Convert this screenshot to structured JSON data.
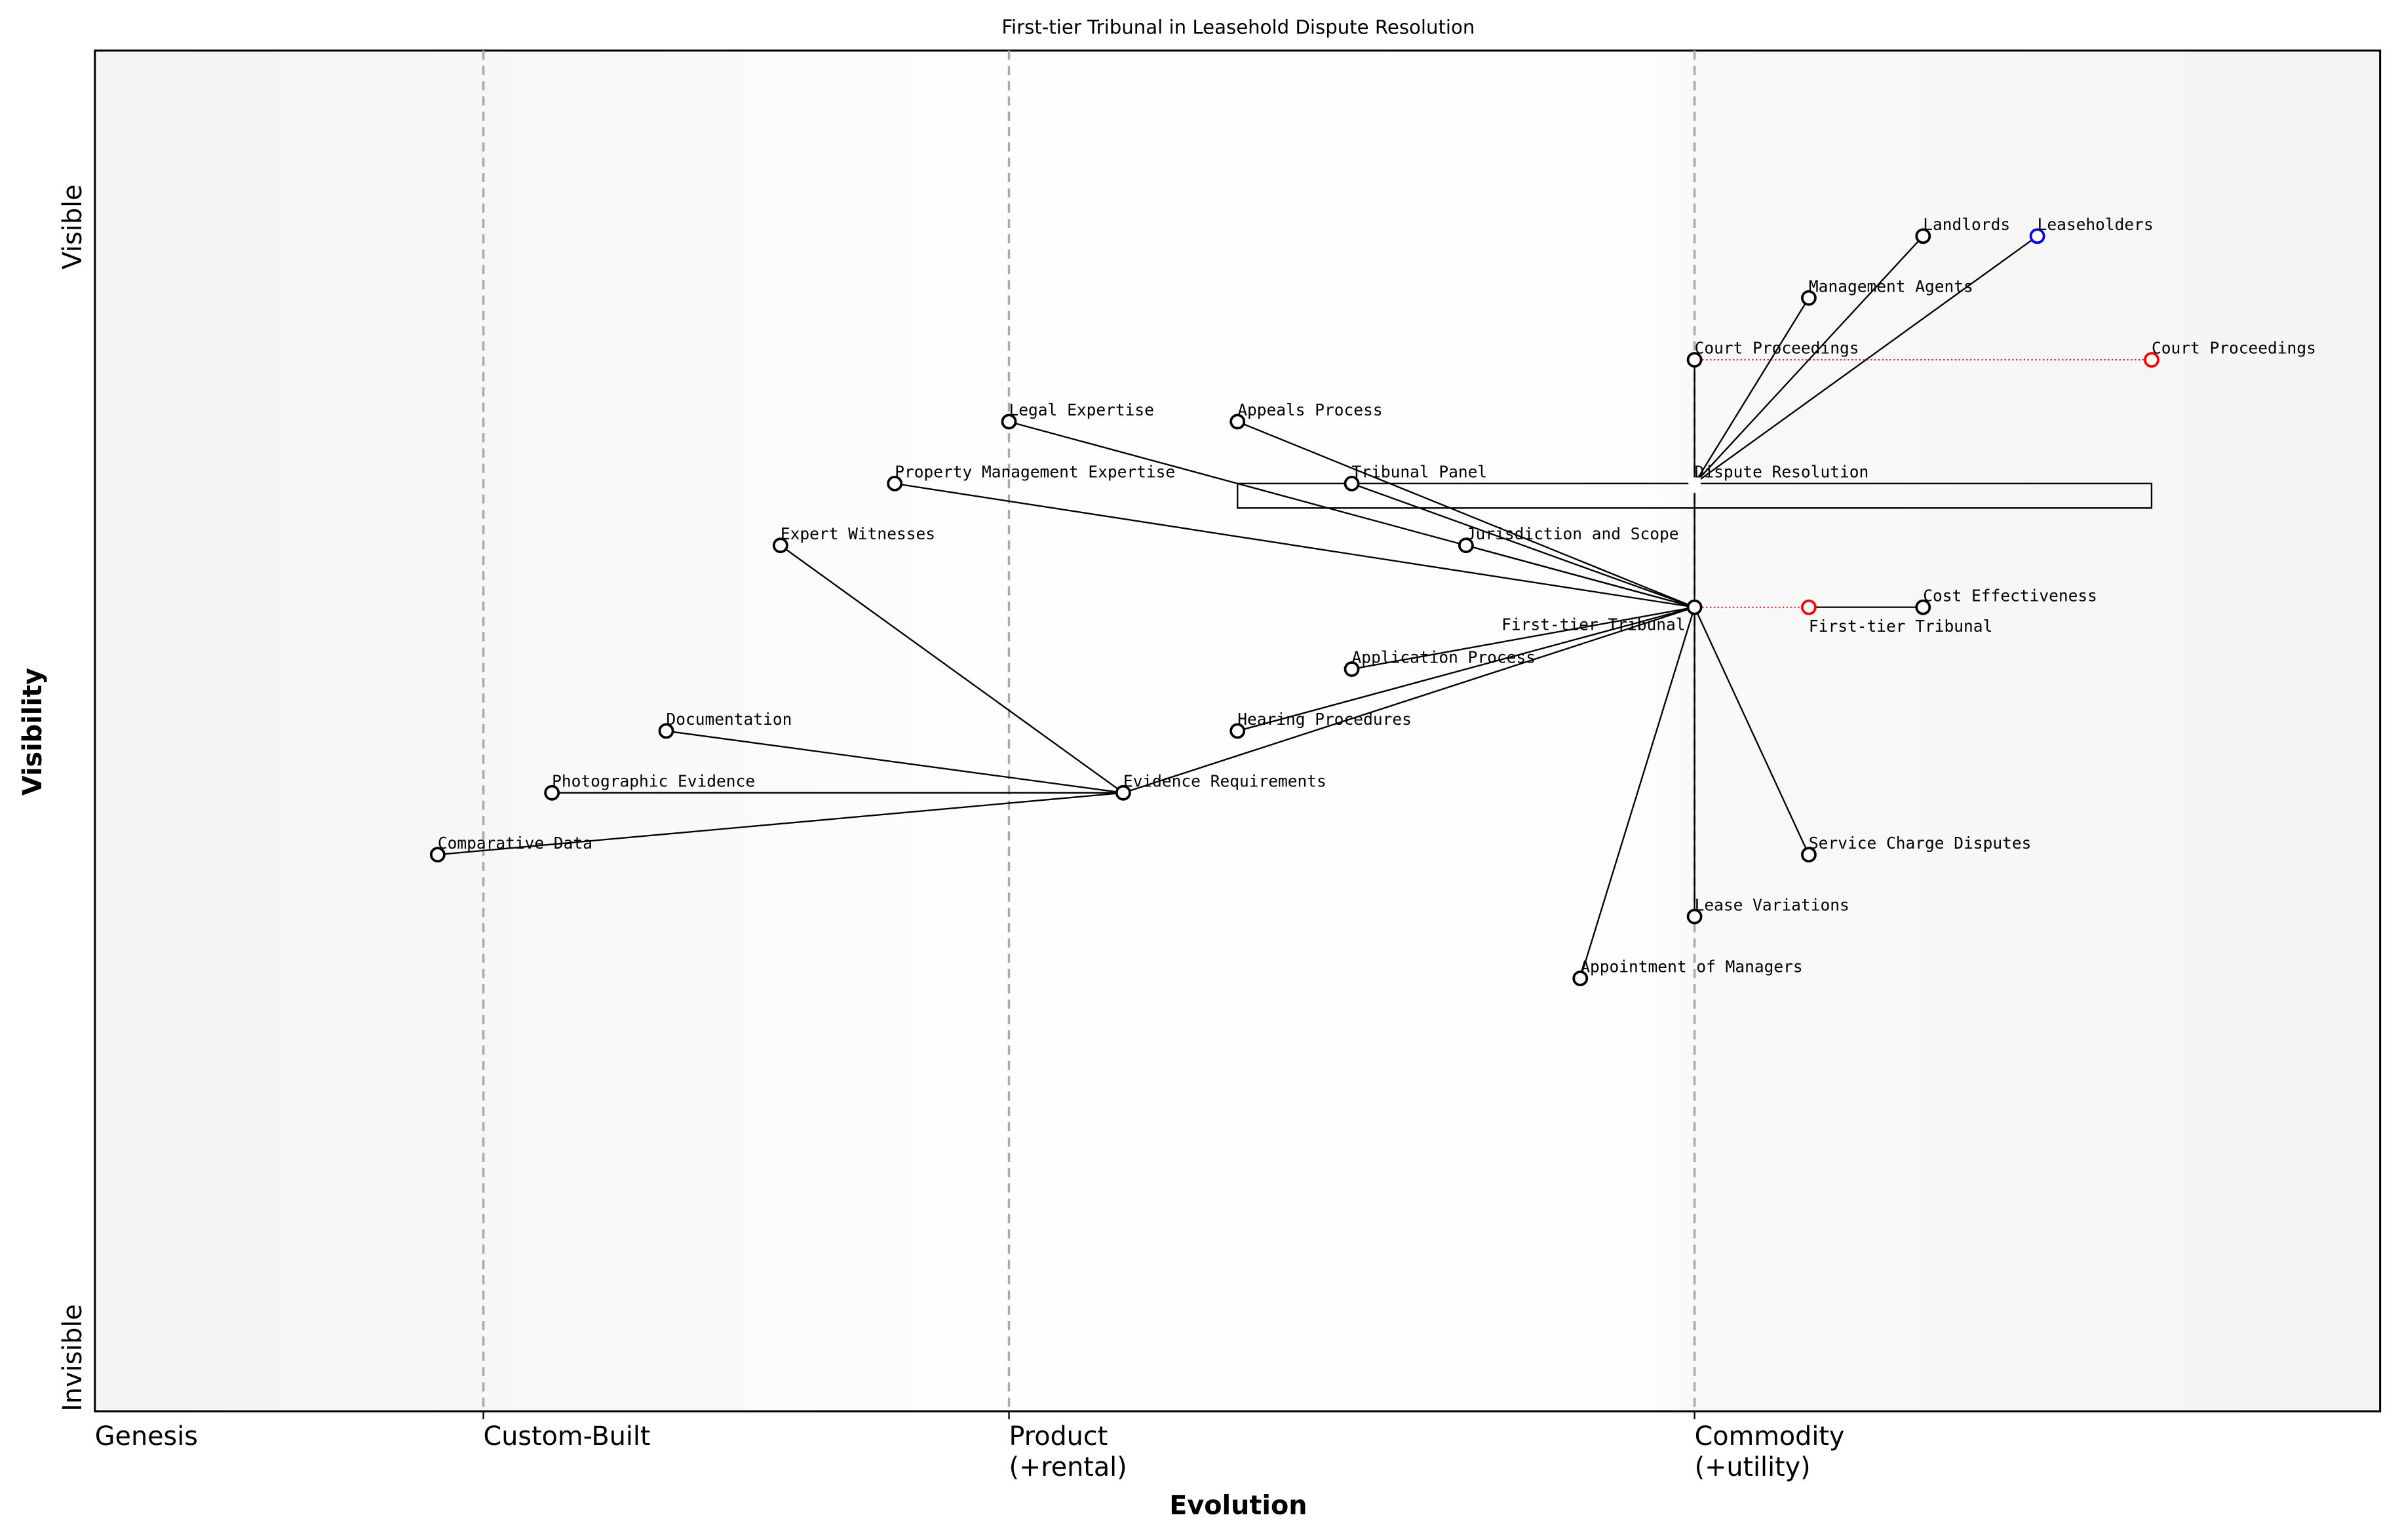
{
  "chart_data": {
    "type": "wardley-map",
    "title": "First-tier Tribunal in Leasehold Dispute Resolution",
    "xlabel": "Evolution",
    "ylabel": "Visibility",
    "xlim": [
      0,
      1
    ],
    "ylim": [
      0,
      1.1
    ],
    "y_ticks": [
      {
        "label": "Invisible",
        "at": "bottom"
      },
      {
        "label": "Visible",
        "at": "top"
      }
    ],
    "stages": [
      {
        "label": "Genesis",
        "x": 0.0,
        "divider": false
      },
      {
        "label": "Custom-Built",
        "x": 0.17,
        "divider": true
      },
      {
        "label": "Product\n(+rental)",
        "x": 0.4,
        "divider": true
      },
      {
        "label": "Commodity\n(+utility)",
        "x": 0.7,
        "divider": true
      }
    ],
    "colors": {
      "node": "#000000",
      "anchor": "#0000ff",
      "evolved": "#ff0000",
      "divider": "#aaaaaa"
    },
    "nodes": [
      {
        "id": "landlords",
        "name": "Landlords",
        "x": 0.8,
        "y": 0.95
      },
      {
        "id": "leaseholders",
        "name": "Leaseholders",
        "x": 0.85,
        "y": 0.95,
        "type": "anchor"
      },
      {
        "id": "mgmt",
        "name": "Management Agents",
        "x": 0.75,
        "y": 0.9
      },
      {
        "id": "court",
        "name": "Court Proceedings",
        "x": 0.7,
        "y": 0.85
      },
      {
        "id": "court_ev",
        "name": "Court Proceedings",
        "x": 0.9,
        "y": 0.85,
        "type": "evolved"
      },
      {
        "id": "legal",
        "name": "Legal Expertise",
        "x": 0.4,
        "y": 0.8
      },
      {
        "id": "appeals",
        "name": "Appeals Process",
        "x": 0.5,
        "y": 0.8
      },
      {
        "id": "propmgmt",
        "name": "Property Management Expertise",
        "x": 0.35,
        "y": 0.75
      },
      {
        "id": "panel",
        "name": "Tribunal Panel",
        "x": 0.55,
        "y": 0.75
      },
      {
        "id": "dispute",
        "name": "Dispute Resolution",
        "x": 0.7,
        "y": 0.75,
        "type": "pipeline-head"
      },
      {
        "id": "expert",
        "name": "Expert Witnesses",
        "x": 0.3,
        "y": 0.7
      },
      {
        "id": "juris",
        "name": "Jurisdiction and Scope",
        "x": 0.6,
        "y": 0.7
      },
      {
        "id": "ftt",
        "name": "First-tier Tribunal",
        "x": 0.7,
        "y": 0.65
      },
      {
        "id": "ftt_ev",
        "name": "First-tier Tribunal",
        "x": 0.75,
        "y": 0.65,
        "type": "evolved"
      },
      {
        "id": "cost",
        "name": "Cost Effectiveness",
        "x": 0.8,
        "y": 0.65
      },
      {
        "id": "application",
        "name": "Application Process",
        "x": 0.55,
        "y": 0.6
      },
      {
        "id": "docs",
        "name": "Documentation",
        "x": 0.25,
        "y": 0.55
      },
      {
        "id": "hearing",
        "name": "Hearing Procedures",
        "x": 0.5,
        "y": 0.55
      },
      {
        "id": "photo",
        "name": "Photographic Evidence",
        "x": 0.2,
        "y": 0.5
      },
      {
        "id": "evidence",
        "name": "Evidence Requirements",
        "x": 0.45,
        "y": 0.5
      },
      {
        "id": "comparative",
        "name": "Comparative Data",
        "x": 0.15,
        "y": 0.45
      },
      {
        "id": "service",
        "name": "Service Charge Disputes",
        "x": 0.75,
        "y": 0.45
      },
      {
        "id": "lease",
        "name": "Lease Variations",
        "x": 0.7,
        "y": 0.4
      },
      {
        "id": "appoint",
        "name": "Appointment of Managers",
        "x": 0.65,
        "y": 0.35
      }
    ],
    "links": [
      [
        "landlords",
        "dispute"
      ],
      [
        "leaseholders",
        "dispute"
      ],
      [
        "mgmt",
        "dispute"
      ],
      [
        "court",
        "dispute"
      ],
      [
        "dispute",
        "ftt"
      ],
      [
        "legal",
        "ftt"
      ],
      [
        "appeals",
        "ftt"
      ],
      [
        "propmgmt",
        "ftt"
      ],
      [
        "panel",
        "ftt"
      ],
      [
        "juris",
        "ftt"
      ],
      [
        "application",
        "ftt"
      ],
      [
        "hearing",
        "ftt"
      ],
      [
        "evidence",
        "ftt"
      ],
      [
        "expert",
        "evidence"
      ],
      [
        "docs",
        "evidence"
      ],
      [
        "photo",
        "evidence"
      ],
      [
        "comparative",
        "evidence"
      ],
      [
        "ftt",
        "service"
      ],
      [
        "ftt",
        "lease"
      ],
      [
        "ftt",
        "appoint"
      ],
      [
        "ftt_ev",
        "cost"
      ]
    ],
    "evolutions": [
      [
        "court",
        "court_ev"
      ],
      [
        "ftt",
        "ftt_ev"
      ]
    ],
    "pipeline": {
      "component": "Dispute Resolution",
      "x_start": 0.5,
      "x_end": 0.9,
      "y": 0.75
    }
  }
}
